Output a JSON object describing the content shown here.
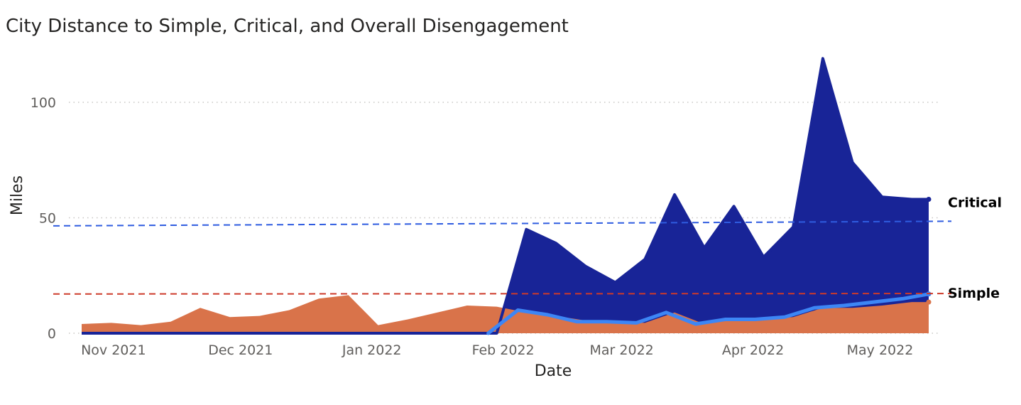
{
  "chart_data": {
    "type": "area",
    "title": "City Distance to Simple, Critical, and Overall Disengagement",
    "xlabel": "Date",
    "ylabel": "Miles",
    "x_tick_labels": [
      "Nov 2021",
      "Dec 2021",
      "Jan 2022",
      "Feb 2022",
      "Mar 2022",
      "Apr 2022",
      "May 2022"
    ],
    "y_ticks": [
      0,
      50,
      100
    ],
    "ylim": [
      0,
      120
    ],
    "grid": true,
    "legend": "none",
    "series": [
      {
        "key": "critical",
        "kind": "area",
        "color": "#182497",
        "x": [
          "2021-10-27",
          "2021-11-03",
          "2021-11-10",
          "2021-11-17",
          "2021-11-24",
          "2021-12-01",
          "2021-12-08",
          "2021-12-15",
          "2021-12-22",
          "2021-12-29",
          "2022-01-05",
          "2022-01-12",
          "2022-01-19",
          "2022-01-26",
          "2022-02-02",
          "2022-02-09",
          "2022-02-16",
          "2022-02-23",
          "2022-03-02",
          "2022-03-09",
          "2022-03-16",
          "2022-03-23",
          "2022-03-30",
          "2022-04-06",
          "2022-04-13",
          "2022-04-20",
          "2022-04-27",
          "2022-05-04",
          "2022-05-11",
          "2022-05-15"
        ],
        "values": [
          0,
          0,
          0,
          0,
          0,
          0,
          0,
          0,
          0,
          0,
          0,
          0,
          0,
          0,
          0,
          45,
          39,
          29,
          22,
          32,
          60,
          37,
          55,
          33,
          46,
          119,
          74,
          59,
          58,
          58
        ]
      },
      {
        "key": "simple",
        "kind": "line",
        "color": "#3d86f5",
        "x": [
          "2022-01-31",
          "2022-02-07",
          "2022-02-14",
          "2022-02-21",
          "2022-02-28",
          "2022-03-07",
          "2022-03-14",
          "2022-03-21",
          "2022-03-28",
          "2022-04-04",
          "2022-04-11",
          "2022-04-18",
          "2022-04-25",
          "2022-05-02",
          "2022-05-09",
          "2022-05-15"
        ],
        "values": [
          0,
          10,
          8,
          5,
          5,
          4.5,
          9,
          4,
          6,
          6,
          7,
          11,
          12,
          13.5,
          15,
          17
        ]
      },
      {
        "key": "overall",
        "kind": "area",
        "color": "#d9734a",
        "x": [
          "2021-10-27",
          "2021-11-03",
          "2021-11-10",
          "2021-11-17",
          "2021-11-24",
          "2021-12-01",
          "2021-12-08",
          "2021-12-15",
          "2021-12-22",
          "2021-12-29",
          "2022-01-05",
          "2022-01-12",
          "2022-01-19",
          "2022-01-26",
          "2022-02-02",
          "2022-02-09",
          "2022-02-16",
          "2022-02-23",
          "2022-03-02",
          "2022-03-09",
          "2022-03-16",
          "2022-03-23",
          "2022-03-30",
          "2022-04-06",
          "2022-04-13",
          "2022-04-20",
          "2022-04-27",
          "2022-05-04",
          "2022-05-11",
          "2022-05-15"
        ],
        "values": [
          4,
          4.5,
          3.5,
          5,
          11,
          7,
          7.5,
          10,
          15,
          16.5,
          3.5,
          6,
          9,
          12,
          11.5,
          9,
          7.5,
          5.5,
          5,
          4.5,
          9,
          4,
          6,
          6,
          7,
          11,
          11,
          12,
          13.5,
          13.5
        ]
      }
    ],
    "reference_lines": [
      {
        "key": "critical_avg",
        "label": "Critical",
        "color": "#2f5ce0",
        "x_start": "2021-10-27",
        "x_end": "2022-05-15",
        "y_start": 46.5,
        "y_end": 48.5
      },
      {
        "key": "simple_avg",
        "label": "Simple",
        "color": "#cd3a2a",
        "x_start": "2021-10-27",
        "x_end": "2022-05-15",
        "y_start": 17,
        "y_end": 17.2
      }
    ]
  }
}
